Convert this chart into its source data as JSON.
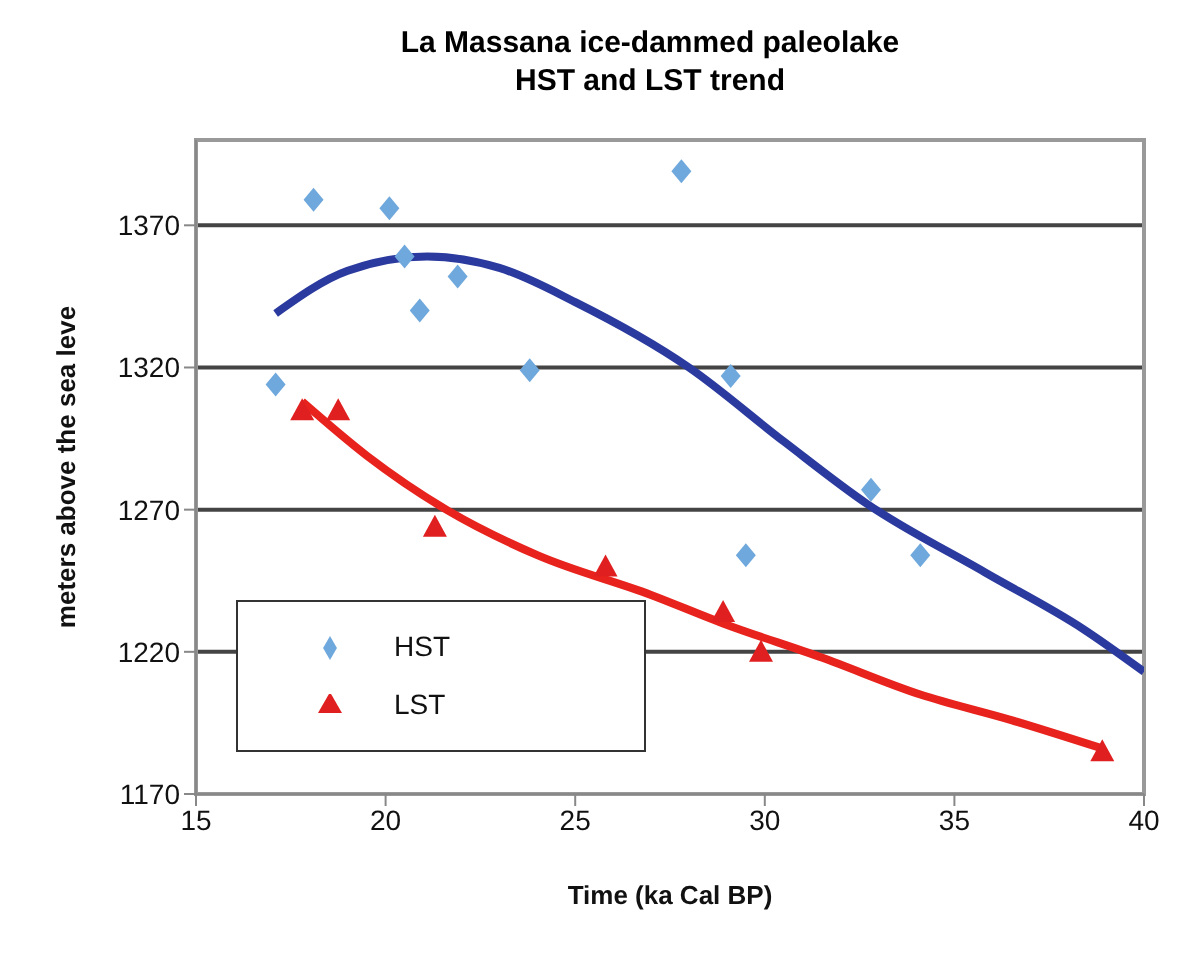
{
  "chart_data": {
    "type": "scatter",
    "title": "La Massana ice-dammed paleolake\nHST and LST trend",
    "xlabel": "Time (ka Cal BP)",
    "ylabel": "meters above the sea leve",
    "xlim": [
      15,
      40
    ],
    "xticks": [
      15,
      20,
      25,
      30,
      35,
      40
    ],
    "ylim": [
      1170,
      1400
    ],
    "yticks": [
      1170,
      1220,
      1270,
      1320,
      1370
    ],
    "grid": "y",
    "legend": "bottom left",
    "series": [
      {
        "name": "HST",
        "marker": "diamond",
        "color": "#6fa8dc",
        "x": [
          17.1,
          18.1,
          20.1,
          20.5,
          20.9,
          21.9,
          23.8,
          27.8,
          29.1,
          29.5,
          32.8,
          34.1
        ],
        "values": [
          1314,
          1379,
          1376,
          1359,
          1340,
          1352,
          1319,
          1389,
          1317,
          1254,
          1277,
          1254
        ]
      },
      {
        "name": "LST",
        "marker": "triangle",
        "color": "#e02020",
        "x": [
          17.8,
          18.75,
          21.3,
          25.8,
          28.9,
          29.9,
          38.9
        ],
        "values": [
          1305,
          1305,
          1264,
          1250,
          1234,
          1220,
          1185
        ]
      },
      {
        "type": "line",
        "marker": "none",
        "color": "#2b3a9e",
        "x": [
          17.1,
          19,
          21.1,
          23,
          25,
          28,
          30.5,
          32.7,
          35.8,
          38.4,
          40
        ],
        "values": [
          1339,
          1354,
          1359,
          1355,
          1343,
          1320,
          1294,
          1272,
          1248,
          1228,
          1213
        ]
      },
      {
        "type": "line",
        "marker": "none",
        "color": "#e8231e",
        "x": [
          17.8,
          19.5,
          21.6,
          24,
          27,
          28.9,
          31.5,
          34.1,
          36.5,
          38.9
        ],
        "values": [
          1308,
          1289,
          1270,
          1254,
          1240,
          1230,
          1218,
          1205,
          1196,
          1186
        ]
      }
    ]
  }
}
